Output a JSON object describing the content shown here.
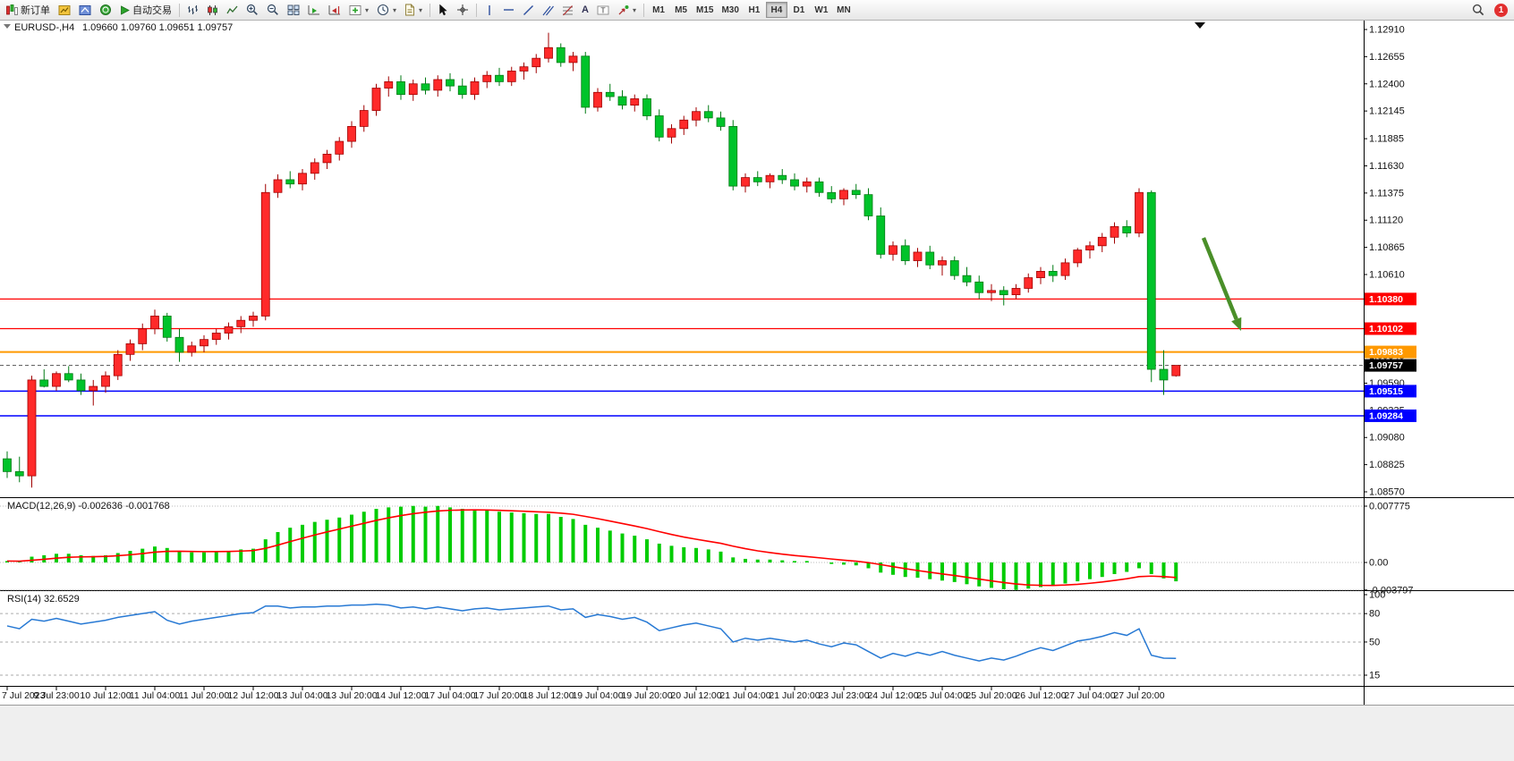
{
  "toolbar": {
    "new_order_label": "新订单",
    "auto_trading_label": "自动交易",
    "timeframes": [
      "M1",
      "M5",
      "M15",
      "M30",
      "H1",
      "H4",
      "D1",
      "W1",
      "MN"
    ],
    "active_timeframe": "H4",
    "notification_count": "1"
  },
  "chart_header": {
    "symbol": "EURUSD-,H4",
    "ohlc": "1.09660 1.09760 1.09651 1.09757"
  },
  "macd_panel": {
    "label": "MACD(12,26,9) -0.002636 -0.001768"
  },
  "rsi_panel": {
    "label": "RSI(14) 32.6529"
  },
  "chart_data": {
    "type": "candlestick",
    "symbol": "EURUSD",
    "timeframe": "H4",
    "price_axis_ticks": [
      "1.12910",
      "1.12655",
      "1.12400",
      "1.12145",
      "1.11885",
      "1.11630",
      "1.11375",
      "1.11120",
      "1.10865",
      "1.10610",
      "1.10355",
      "1.10100",
      "1.09845",
      "1.09590",
      "1.09335",
      "1.09080",
      "1.08825",
      "1.08570"
    ],
    "time_labels": [
      "7 Jul 2023",
      "9 Jul 23:00",
      "10 Jul 12:00",
      "11 Jul 04:00",
      "11 Jul 20:00",
      "12 Jul 12:00",
      "13 Jul 04:00",
      "13 Jul 20:00",
      "14 Jul 12:00",
      "17 Jul 04:00",
      "17 Jul 20:00",
      "18 Jul 12:00",
      "19 Jul 04:00",
      "19 Jul 20:00",
      "20 Jul 12:00",
      "21 Jul 04:00",
      "21 Jul 20:00",
      "23 Jul 23:00",
      "24 Jul 12:00",
      "25 Jul 04:00",
      "25 Jul 20:00",
      "26 Jul 12:00",
      "27 Jul 04:00",
      "27 Jul 20:00"
    ],
    "candles": [
      [
        1.0888,
        1.0895,
        1.087,
        1.0876
      ],
      [
        1.0876,
        1.089,
        1.0866,
        1.0872
      ],
      [
        1.0872,
        1.0966,
        1.0861,
        1.0962
      ],
      [
        1.0962,
        1.0972,
        1.0955,
        1.0956
      ],
      [
        1.0956,
        1.097,
        1.0952,
        1.0968
      ],
      [
        1.0968,
        1.0975,
        1.096,
        1.0962
      ],
      [
        1.0962,
        1.0968,
        1.0948,
        1.0952
      ],
      [
        1.0952,
        1.0962,
        1.0938,
        1.0956
      ],
      [
        1.0956,
        1.097,
        1.095,
        1.0966
      ],
      [
        1.0966,
        1.099,
        1.0962,
        1.0986
      ],
      [
        1.0986,
        1.1,
        1.098,
        1.0996
      ],
      [
        1.0996,
        1.1015,
        1.099,
        1.101
      ],
      [
        1.101,
        1.1028,
        1.1005,
        1.1022
      ],
      [
        1.1022,
        1.1025,
        1.0998,
        1.1002
      ],
      [
        1.1002,
        1.101,
        1.0979,
        1.0988
      ],
      [
        1.0988,
        1.0998,
        1.0984,
        1.0994
      ],
      [
        1.0994,
        1.1004,
        1.0988,
        1.1
      ],
      [
        1.1,
        1.101,
        1.0995,
        1.1006
      ],
      [
        1.1006,
        1.1016,
        1.1,
        1.1012
      ],
      [
        1.1012,
        1.1022,
        1.1006,
        1.1018
      ],
      [
        1.1018,
        1.1026,
        1.1012,
        1.1022
      ],
      [
        1.1022,
        1.1146,
        1.1018,
        1.1138
      ],
      [
        1.1138,
        1.1155,
        1.1133,
        1.115
      ],
      [
        1.115,
        1.1158,
        1.1142,
        1.1146
      ],
      [
        1.1146,
        1.116,
        1.114,
        1.1156
      ],
      [
        1.1156,
        1.117,
        1.115,
        1.1166
      ],
      [
        1.1166,
        1.1178,
        1.116,
        1.1174
      ],
      [
        1.1174,
        1.119,
        1.1168,
        1.1186
      ],
      [
        1.1186,
        1.1205,
        1.118,
        1.12
      ],
      [
        1.12,
        1.122,
        1.1195,
        1.1215
      ],
      [
        1.1215,
        1.124,
        1.121,
        1.1236
      ],
      [
        1.1236,
        1.1247,
        1.1228,
        1.1242
      ],
      [
        1.1242,
        1.1248,
        1.1225,
        1.123
      ],
      [
        1.123,
        1.1244,
        1.1224,
        1.124
      ],
      [
        1.124,
        1.1246,
        1.123,
        1.1234
      ],
      [
        1.1234,
        1.1248,
        1.1228,
        1.1244
      ],
      [
        1.1244,
        1.125,
        1.1233,
        1.1238
      ],
      [
        1.1238,
        1.1245,
        1.1226,
        1.123
      ],
      [
        1.123,
        1.1246,
        1.1225,
        1.1242
      ],
      [
        1.1242,
        1.1252,
        1.1236,
        1.1248
      ],
      [
        1.1248,
        1.1255,
        1.1238,
        1.1242
      ],
      [
        1.1242,
        1.1256,
        1.1238,
        1.1252
      ],
      [
        1.1252,
        1.126,
        1.1244,
        1.1256
      ],
      [
        1.1256,
        1.1268,
        1.125,
        1.1264
      ],
      [
        1.1264,
        1.1288,
        1.126,
        1.1274
      ],
      [
        1.1274,
        1.1278,
        1.1256,
        1.126
      ],
      [
        1.126,
        1.127,
        1.1252,
        1.1266
      ],
      [
        1.1266,
        1.127,
        1.1212,
        1.1218
      ],
      [
        1.1218,
        1.1236,
        1.1214,
        1.1232
      ],
      [
        1.1232,
        1.124,
        1.1224,
        1.1228
      ],
      [
        1.1228,
        1.1234,
        1.1216,
        1.122
      ],
      [
        1.122,
        1.123,
        1.1214,
        1.1226
      ],
      [
        1.1226,
        1.123,
        1.1206,
        1.121
      ],
      [
        1.121,
        1.1216,
        1.1186,
        1.119
      ],
      [
        1.119,
        1.1202,
        1.1184,
        1.1198
      ],
      [
        1.1198,
        1.121,
        1.1192,
        1.1206
      ],
      [
        1.1206,
        1.1218,
        1.12,
        1.1214
      ],
      [
        1.1214,
        1.122,
        1.1204,
        1.1208
      ],
      [
        1.1208,
        1.1214,
        1.1196,
        1.12
      ],
      [
        1.12,
        1.1206,
        1.114,
        1.1144
      ],
      [
        1.1144,
        1.1156,
        1.1138,
        1.1152
      ],
      [
        1.1152,
        1.1158,
        1.1144,
        1.1148
      ],
      [
        1.1148,
        1.1156,
        1.1142,
        1.1154
      ],
      [
        1.1154,
        1.116,
        1.1146,
        1.115
      ],
      [
        1.115,
        1.1156,
        1.114,
        1.1144
      ],
      [
        1.1144,
        1.1152,
        1.1138,
        1.1148
      ],
      [
        1.1148,
        1.1152,
        1.1134,
        1.1138
      ],
      [
        1.1138,
        1.1144,
        1.1128,
        1.1132
      ],
      [
        1.1132,
        1.1142,
        1.1126,
        1.114
      ],
      [
        1.114,
        1.1146,
        1.1132,
        1.1136
      ],
      [
        1.1136,
        1.1142,
        1.1112,
        1.1116
      ],
      [
        1.1116,
        1.1124,
        1.1076,
        1.108
      ],
      [
        1.108,
        1.1092,
        1.1074,
        1.1088
      ],
      [
        1.1088,
        1.1094,
        1.107,
        1.1074
      ],
      [
        1.1074,
        1.1086,
        1.1068,
        1.1082
      ],
      [
        1.1082,
        1.1088,
        1.1066,
        1.107
      ],
      [
        1.107,
        1.1078,
        1.106,
        1.1074
      ],
      [
        1.1074,
        1.1078,
        1.1056,
        1.106
      ],
      [
        1.106,
        1.1068,
        1.105,
        1.1054
      ],
      [
        1.1054,
        1.106,
        1.1038,
        1.1044
      ],
      [
        1.1044,
        1.1052,
        1.1036,
        1.1046
      ],
      [
        1.1046,
        1.105,
        1.1032,
        1.1042
      ],
      [
        1.1042,
        1.1052,
        1.1038,
        1.1048
      ],
      [
        1.1048,
        1.1062,
        1.1044,
        1.1058
      ],
      [
        1.1058,
        1.1068,
        1.1052,
        1.1064
      ],
      [
        1.1064,
        1.107,
        1.1054,
        1.106
      ],
      [
        1.106,
        1.1076,
        1.1056,
        1.1072
      ],
      [
        1.1072,
        1.1086,
        1.1068,
        1.1084
      ],
      [
        1.1084,
        1.1092,
        1.1076,
        1.1088
      ],
      [
        1.1088,
        1.11,
        1.1082,
        1.1096
      ],
      [
        1.1096,
        1.111,
        1.109,
        1.1106
      ],
      [
        1.1106,
        1.1112,
        1.1096,
        1.11
      ],
      [
        1.11,
        1.1142,
        1.1096,
        1.1138
      ],
      [
        1.1138,
        1.114,
        1.096,
        1.0972
      ],
      [
        1.0972,
        1.099,
        1.0948,
        1.0962
      ],
      [
        1.0966,
        1.0976,
        1.09651,
        1.09757
      ]
    ],
    "hlines": [
      {
        "price": 1.1038,
        "color": "#ff0000",
        "label": "1.10380",
        "width": 1.2
      },
      {
        "price": 1.10102,
        "color": "#ff0000",
        "label": "1.10102",
        "width": 1.2
      },
      {
        "price": 1.09883,
        "color": "#ff9900",
        "label": "1.09883",
        "width": 2
      },
      {
        "price": 1.09515,
        "color": "#0000ff",
        "label": "1.09515",
        "width": 1.5
      },
      {
        "price": 1.09284,
        "color": "#0000ff",
        "label": "1.09284",
        "width": 1.5
      }
    ],
    "current_price": {
      "label": "1.09757",
      "value": 1.09757
    },
    "macd": {
      "values": [
        0.0002,
        0.0001,
        0.0008,
        0.001,
        0.0012,
        0.0012,
        0.001,
        0.0009,
        0.001,
        0.0013,
        0.0016,
        0.0019,
        0.0022,
        0.002,
        0.0016,
        0.0014,
        0.0014,
        0.0015,
        0.0016,
        0.0018,
        0.0019,
        0.0032,
        0.0042,
        0.0048,
        0.0052,
        0.0056,
        0.0059,
        0.0062,
        0.0066,
        0.007,
        0.0074,
        0.0076,
        0.0077,
        0.0078,
        0.0077,
        0.0078,
        0.0076,
        0.0074,
        0.0073,
        0.0072,
        0.007,
        0.0069,
        0.0068,
        0.0067,
        0.0067,
        0.0063,
        0.006,
        0.0052,
        0.0048,
        0.0044,
        0.004,
        0.0037,
        0.0032,
        0.0026,
        0.0023,
        0.0021,
        0.002,
        0.0018,
        0.0015,
        0.0007,
        0.0005,
        0.0004,
        0.0004,
        0.0003,
        0.0002,
        0.0002,
        0.0,
        -0.0002,
        -0.0003,
        -0.0004,
        -0.0008,
        -0.0014,
        -0.0017,
        -0.002,
        -0.0021,
        -0.0023,
        -0.0025,
        -0.0027,
        -0.003,
        -0.0033,
        -0.0035,
        -0.0037,
        -0.0038,
        -0.0036,
        -0.0034,
        -0.0032,
        -0.0029,
        -0.0026,
        -0.0023,
        -0.002,
        -0.0016,
        -0.0013,
        -0.0008,
        -0.0016,
        -0.0022,
        -0.0026
      ],
      "axis": [
        "0.007775",
        "0.00",
        "-0.003797"
      ],
      "main_value": -0.002636,
      "signal_value": -0.001768
    },
    "rsi": {
      "values": [
        67,
        64,
        74,
        72,
        75,
        72,
        69,
        71,
        73,
        76,
        78,
        80,
        82,
        73,
        69,
        72,
        74,
        76,
        78,
        80,
        81,
        88,
        88,
        86,
        87,
        87,
        88,
        88,
        89,
        89,
        90,
        89,
        86,
        87,
        85,
        87,
        85,
        83,
        85,
        86,
        84,
        85,
        86,
        87,
        88,
        84,
        85,
        76,
        79,
        77,
        74,
        76,
        71,
        62,
        65,
        68,
        70,
        67,
        64,
        50,
        54,
        52,
        54,
        52,
        50,
        52,
        48,
        45,
        49,
        47,
        40,
        33,
        38,
        35,
        39,
        36,
        40,
        36,
        33,
        30,
        33,
        31,
        35,
        40,
        44,
        41,
        46,
        51,
        53,
        56,
        60,
        57,
        64,
        36,
        33,
        32.65
      ],
      "axis": [
        "100",
        "80",
        "50",
        "15"
      ],
      "last_value": 32.6529
    },
    "colors": {
      "up_body": "#ff2a2a",
      "up_edge": "#a00000",
      "down_body": "#00c32a",
      "down_edge": "#007a14",
      "macd_hist": "#00cc00",
      "macd_signal": "#ff0000",
      "rsi_line": "#2779d4",
      "current_line": "#555555",
      "badge_current": "#000000",
      "arrow": "#4a8f29"
    },
    "annotations": [
      {
        "type": "arrow",
        "color": "#4a8f29"
      }
    ]
  }
}
